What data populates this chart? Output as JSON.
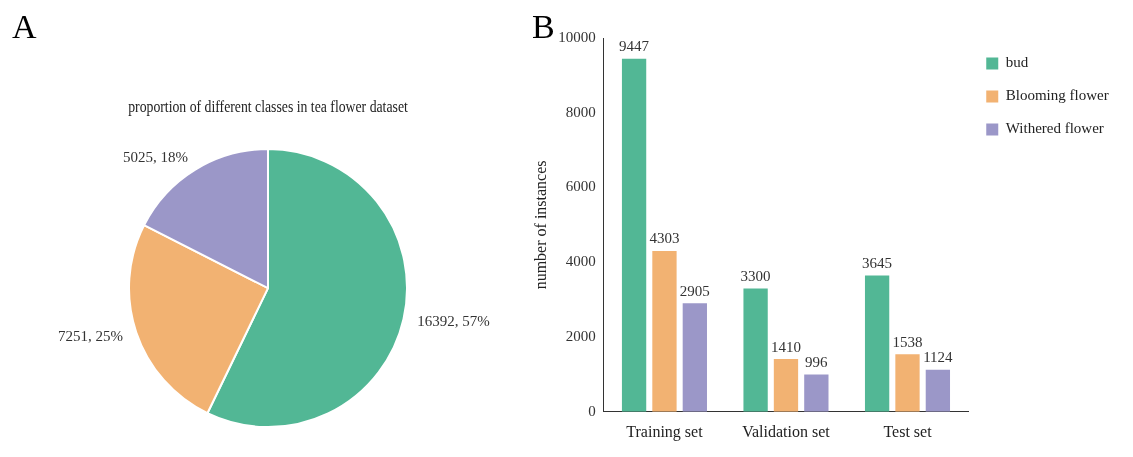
{
  "chart_data": [
    {
      "type": "pie",
      "title": "proportion of different classes in tea flower dataset",
      "annotations": [
        "A"
      ],
      "categories": [
        null,
        null,
        null
      ],
      "values": [
        16392,
        7251,
        5025
      ],
      "colors": [
        "#52b795",
        "#f2b272",
        "#9b97c8"
      ],
      "value_labels": [
        "16392, 57%",
        "7251, 25%",
        "5025, 18%"
      ]
    },
    {
      "type": "bar",
      "annotations": [
        "B"
      ],
      "ylabel": "number of instances",
      "categories": [
        "Training set",
        "Validation set",
        "Test set"
      ],
      "series": [
        {
          "name": "bud",
          "color": "#52b795",
          "values": [
            9447,
            3300,
            3645
          ]
        },
        {
          "name": "Blooming flower",
          "color": "#f2b272",
          "values": [
            4303,
            1410,
            1538
          ]
        },
        {
          "name": "Withered flower",
          "color": "#9b97c8",
          "values": [
            2905,
            996,
            1124
          ]
        }
      ],
      "ylim": [
        0,
        10000
      ],
      "yticks": [
        0,
        2000,
        4000,
        6000,
        8000,
        10000
      ],
      "data_labels": true,
      "legend": "top right"
    }
  ]
}
